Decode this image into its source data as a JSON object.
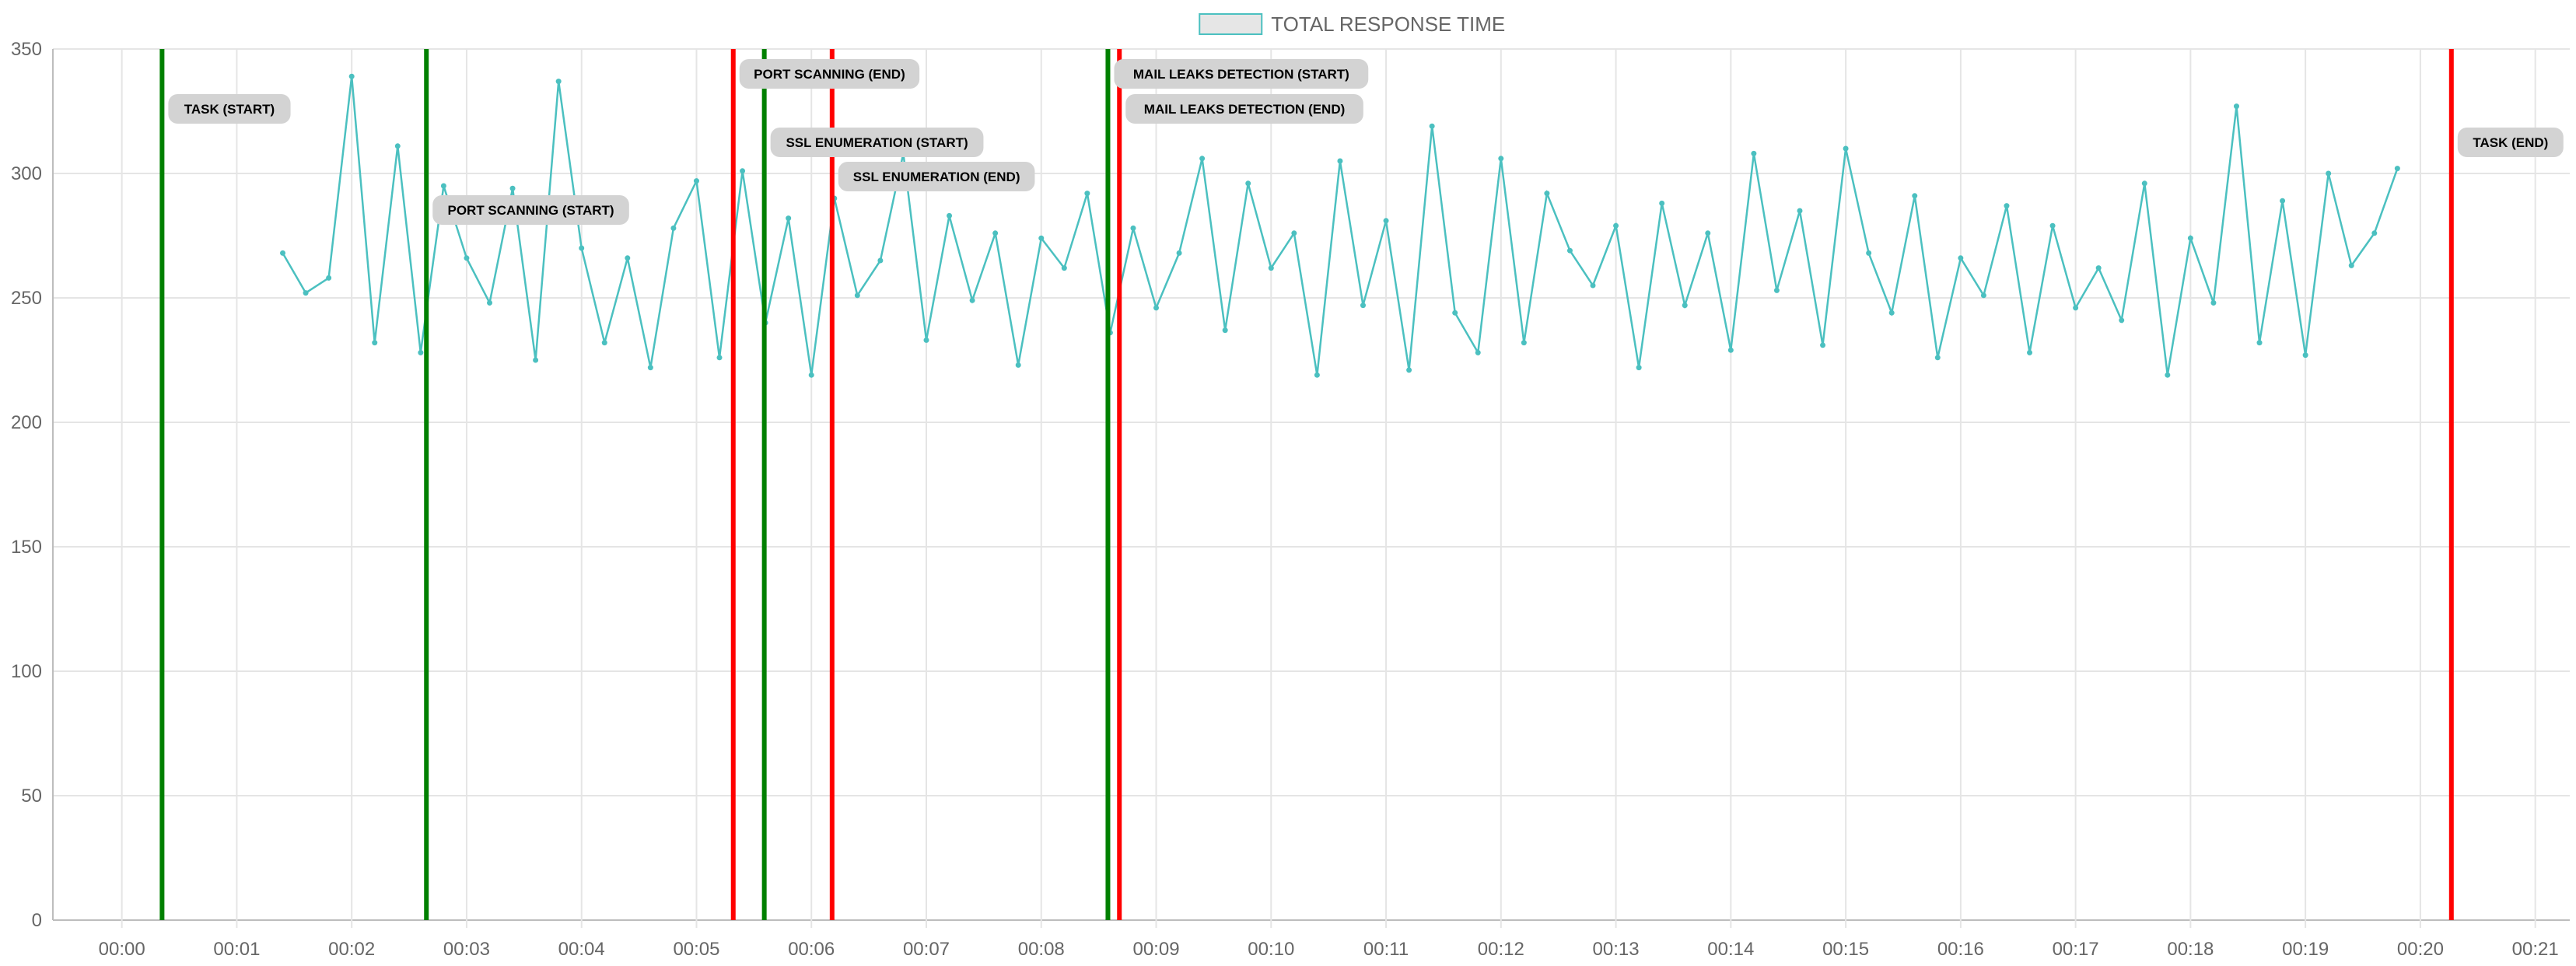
{
  "chart_data": {
    "type": "line",
    "title": "",
    "xlabel": "",
    "ylabel": "",
    "x_unit": "minutes",
    "xlim": [
      -0.6,
      21.3
    ],
    "ylim": [
      0,
      350
    ],
    "x_ticks": [
      0,
      1,
      2,
      3,
      4,
      5,
      6,
      7,
      8,
      9,
      10,
      11,
      12,
      13,
      14,
      15,
      16,
      17,
      18,
      19,
      20,
      21
    ],
    "x_tick_labels": [
      "00:00",
      "00:01",
      "00:02",
      "00:03",
      "00:04",
      "00:05",
      "00:06",
      "00:07",
      "00:08",
      "00:09",
      "00:10",
      "00:11",
      "00:12",
      "00:13",
      "00:14",
      "00:15",
      "00:16",
      "00:17",
      "00:18",
      "00:19",
      "00:20",
      "00:21"
    ],
    "y_ticks": [
      0,
      50,
      100,
      150,
      200,
      250,
      300,
      350
    ],
    "y_tick_labels": [
      "0",
      "50",
      "100",
      "150",
      "200",
      "250",
      "300",
      "350"
    ],
    "grid": true,
    "legend": {
      "position": "top-center"
    },
    "colors": {
      "series": "#4bc0c0",
      "start_line": "#008000",
      "end_line": "#ff0000",
      "annotation_bg": "#d3d3d3",
      "grid": "#e5e5e5"
    },
    "series": [
      {
        "name": "TOTAL RESPONSE TIME",
        "x": [
          1.4,
          1.6,
          1.8,
          2.0,
          2.2,
          2.4,
          2.6,
          2.8,
          3.0,
          3.2,
          3.4,
          3.6,
          3.8,
          4.0,
          4.2,
          4.4,
          4.6,
          4.8,
          5.0,
          5.2,
          5.4,
          5.6,
          5.8,
          6.0,
          6.2,
          6.4,
          6.6,
          6.8,
          7.0,
          7.2,
          7.4,
          7.6,
          7.8,
          8.0,
          8.2,
          8.4,
          8.6,
          8.8,
          9.0,
          9.2,
          9.4,
          9.6,
          9.8,
          10.0,
          10.2,
          10.4,
          10.6,
          10.8,
          11.0,
          11.2,
          11.4,
          11.6,
          11.8,
          12.0,
          12.2,
          12.4,
          12.6,
          12.8,
          13.0,
          13.2,
          13.4,
          13.6,
          13.8,
          14.0,
          14.2,
          14.4,
          14.6,
          14.8,
          15.0,
          15.2,
          15.4,
          15.6,
          15.8,
          16.0,
          16.2,
          16.4,
          16.6,
          16.8,
          17.0,
          17.2,
          17.4,
          17.6,
          17.8,
          18.0,
          18.2,
          18.4,
          18.6,
          18.8,
          19.0,
          19.2,
          19.4,
          19.6,
          19.8
        ],
        "y": [
          268,
          252,
          258,
          339,
          232,
          311,
          228,
          295,
          266,
          248,
          294,
          225,
          337,
          270,
          232,
          266,
          222,
          278,
          297,
          226,
          301,
          240,
          282,
          219,
          290,
          251,
          265,
          308,
          233,
          283,
          249,
          276,
          223,
          274,
          262,
          292,
          236,
          278,
          246,
          268,
          306,
          237,
          296,
          262,
          276,
          219,
          305,
          247,
          281,
          221,
          319,
          244,
          228,
          306,
          232,
          292,
          269,
          255,
          279,
          222,
          288,
          247,
          276,
          229,
          308,
          253,
          285,
          231,
          310,
          268,
          244,
          291,
          226,
          266,
          251,
          287,
          228,
          279,
          246,
          262,
          241,
          296,
          219,
          274,
          248,
          327,
          232,
          289,
          227,
          300,
          263,
          276,
          302
        ]
      }
    ],
    "annotations": [
      {
        "label": "TASK (START)",
        "x": 0.35,
        "kind": "start"
      },
      {
        "label": "PORT SCANNING (START)",
        "x": 2.65,
        "kind": "start"
      },
      {
        "label": "PORT SCANNING (END)",
        "x": 5.32,
        "kind": "end"
      },
      {
        "label": "SSL ENUMERATION (START)",
        "x": 5.59,
        "kind": "start"
      },
      {
        "label": "SSL ENUMERATION (END)",
        "x": 6.18,
        "kind": "end"
      },
      {
        "label": "MAIL LEAKS DETECTION (START)",
        "x": 8.58,
        "kind": "start"
      },
      {
        "label": "MAIL LEAKS DETECTION (END)",
        "x": 8.68,
        "kind": "end"
      },
      {
        "label": "TASK (END)",
        "x": 20.27,
        "kind": "end"
      }
    ]
  }
}
